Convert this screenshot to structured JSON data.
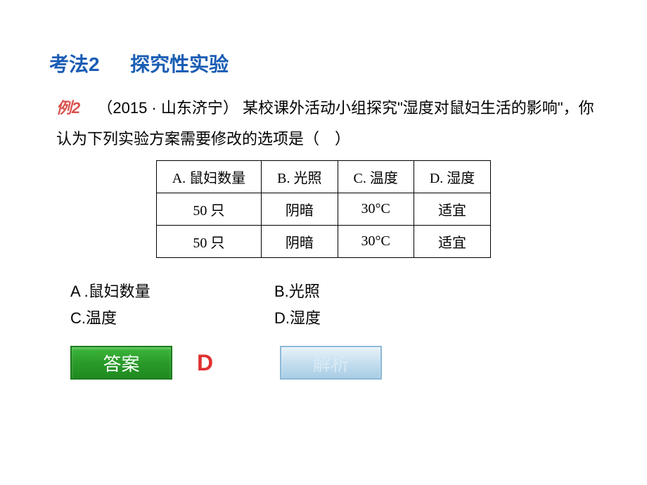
{
  "title": {
    "method_number": "考法2",
    "method_name": "探究性实验"
  },
  "question": {
    "example_label": "例2",
    "source": "（2015 · 山东济宁）",
    "text_part1": "某校课外活动小组探究\"湿度对鼠妇生活的影响\"，你认为下列实验方案需要修改的选项是（　）"
  },
  "table": {
    "headers": [
      "A. 鼠妇数量",
      "B. 光照",
      "C. 温度",
      "D. 湿度"
    ],
    "rows": [
      [
        "50 只",
        "阴暗",
        "30°C",
        "适宜"
      ],
      [
        "50 只",
        "阴暗",
        "30°C",
        "适宜"
      ]
    ]
  },
  "options": {
    "A": "A .鼠妇数量",
    "B": "B.光照",
    "C": "C.温度",
    "D": "D.湿度"
  },
  "buttons": {
    "answer_label": "答案",
    "analysis_label": "解析"
  },
  "answer": "D",
  "colors": {
    "title": "#1a5db4",
    "example_label": "#d9534f",
    "answer": "#e03030",
    "btn_answer_bg": "#2a9b2a",
    "btn_analysis_bg": "#c5dfef"
  }
}
